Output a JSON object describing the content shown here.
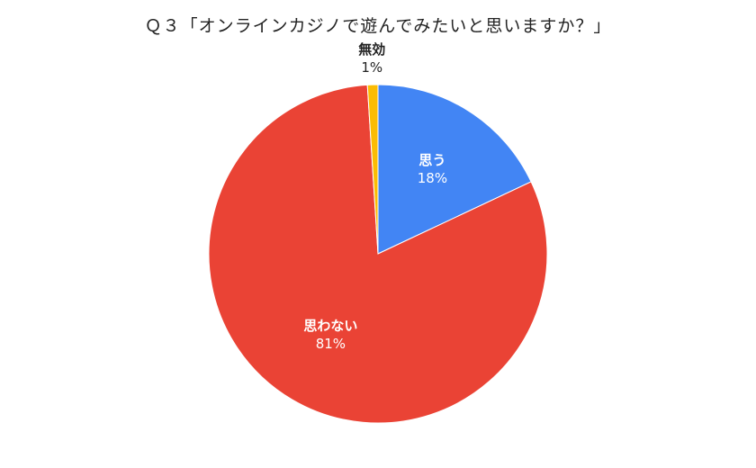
{
  "chart_data": {
    "type": "pie",
    "title": "Ｑ３「オンラインカジノで遊んでみたいと思いますか？」",
    "slices": [
      {
        "label": "思う",
        "value": 18,
        "value_label": "18%",
        "color": "#4285f4",
        "label_placement": "inside",
        "label_color": "#ffffff"
      },
      {
        "label": "思わない",
        "value": 81,
        "value_label": "81%",
        "color": "#ea4335",
        "label_placement": "inside",
        "label_color": "#ffffff"
      },
      {
        "label": "無効",
        "value": 1,
        "value_label": "1%",
        "color": "#fbbc04",
        "label_placement": "outside",
        "label_color": "#222222"
      }
    ],
    "start_angle": "12 o'clock",
    "direction": "clockwise",
    "legend": "none"
  }
}
